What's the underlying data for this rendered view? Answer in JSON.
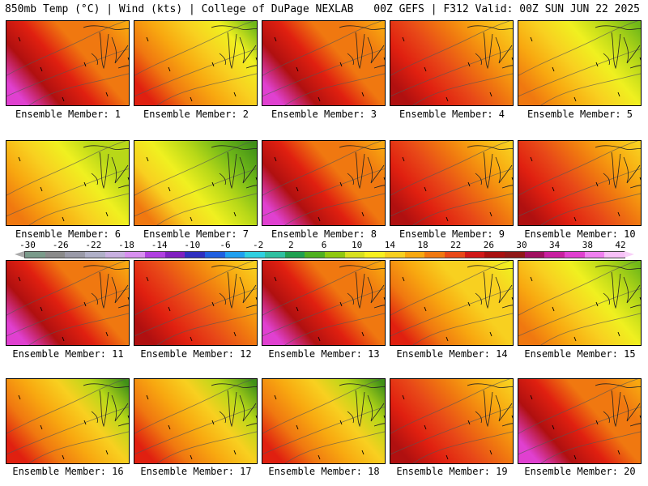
{
  "header": {
    "title": "850mb Temp (°C) | Wind (kts) | College of DuPage NEXLAB",
    "run_info": "00Z GEFS | F312 Valid: 00Z SUN JUN 22 2025"
  },
  "members": [
    {
      "label": "Ensemble Member: 1",
      "scheme": "hot-west-purple"
    },
    {
      "label": "Ensemble Member: 2",
      "scheme": "warm-green-north"
    },
    {
      "label": "Ensemble Member: 3",
      "scheme": "hot-west-purple"
    },
    {
      "label": "Ensemble Member: 4",
      "scheme": "hot-west-red"
    },
    {
      "label": "Ensemble Member: 5",
      "scheme": "mild-green-ne"
    },
    {
      "label": "Ensemble Member: 6",
      "scheme": "mild-green-north"
    },
    {
      "label": "Ensemble Member: 7",
      "scheme": "cool-green"
    },
    {
      "label": "Ensemble Member: 8",
      "scheme": "hot-west-purple"
    },
    {
      "label": "Ensemble Member: 9",
      "scheme": "hot-west-red"
    },
    {
      "label": "Ensemble Member: 10",
      "scheme": "hot-west-red"
    },
    {
      "label": "Ensemble Member: 11",
      "scheme": "hot-west-purple"
    },
    {
      "label": "Ensemble Member: 12",
      "scheme": "hot-west-red"
    },
    {
      "label": "Ensemble Member: 13",
      "scheme": "hot-west-purple"
    },
    {
      "label": "Ensemble Member: 14",
      "scheme": "warm-uniform"
    },
    {
      "label": "Ensemble Member: 15",
      "scheme": "mild-green-ne"
    },
    {
      "label": "Ensemble Member: 16",
      "scheme": "warm-green-ne"
    },
    {
      "label": "Ensemble Member: 17",
      "scheme": "warm-green-ne"
    },
    {
      "label": "Ensemble Member: 18",
      "scheme": "warm-green-ne"
    },
    {
      "label": "Ensemble Member: 19",
      "scheme": "hot-west-red"
    },
    {
      "label": "Ensemble Member: 20",
      "scheme": "hot-west-purple"
    }
  ],
  "colorbar": {
    "labels": [
      "-30",
      "-26",
      "-22",
      "-18",
      "-14",
      "-10",
      "-6",
      "-2",
      "2",
      "6",
      "10",
      "14",
      "18",
      "22",
      "26",
      "30",
      "34",
      "38",
      "42"
    ],
    "colors": [
      "#7a9a8a",
      "#8a8a8a",
      "#9a9aa8",
      "#b0b0c8",
      "#c8b0e0",
      "#d890f0",
      "#b040e0",
      "#8020c0",
      "#3030c0",
      "#2060e0",
      "#20a0f0",
      "#30d0e0",
      "#30c0a0",
      "#20a050",
      "#50b020",
      "#90c810",
      "#d8e020",
      "#f8f020",
      "#f8d020",
      "#f8a810",
      "#f07810",
      "#e84818",
      "#d01818",
      "#a81010",
      "#901818",
      "#a01060",
      "#c820a0",
      "#e040d0",
      "#f080f0",
      "#f8c0f8"
    ]
  },
  "palette": {
    "purple": "#e040d0",
    "darkred": "#b01010",
    "red": "#e02010",
    "redorange": "#e84818",
    "orange": "#f07810",
    "lightorange": "#f8a810",
    "gold": "#f8d020",
    "yellow": "#f0f020",
    "yellowgreen": "#b8d818",
    "green": "#70b818",
    "darkgreen": "#409018"
  }
}
